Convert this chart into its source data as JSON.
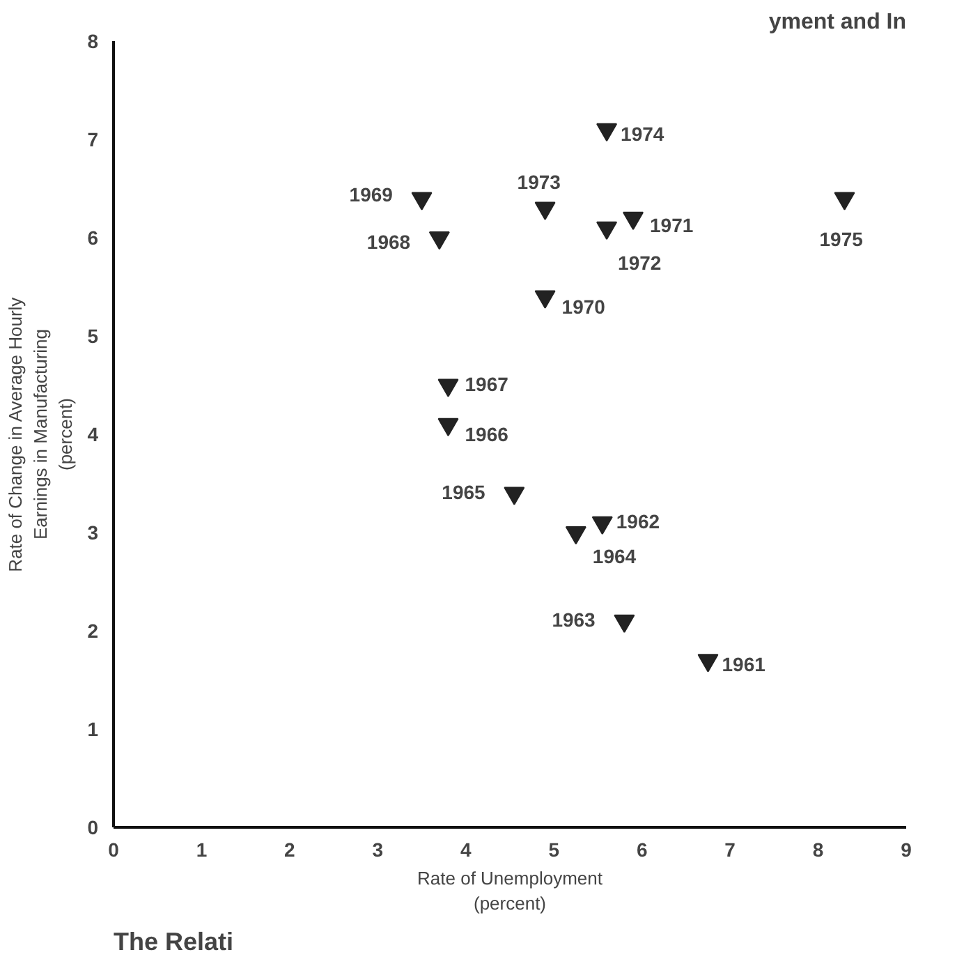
{
  "chart_data": {
    "type": "scatter",
    "title": "yment and In",
    "xlabel": "Rate of Unemployment\n(percent)",
    "ylabel": "Rate of Change in Average Hourly\nEarnings in Manufacturing\n(percent)",
    "x": [
      6.75,
      5.55,
      5.8,
      5.25,
      4.55,
      3.8,
      3.8,
      3.7,
      3.5,
      4.9,
      5.9,
      5.6,
      4.9,
      5.6,
      8.3
    ],
    "values": [
      1.7,
      3.1,
      2.1,
      3.0,
      3.4,
      4.1,
      4.5,
      6.0,
      6.4,
      5.4,
      6.2,
      6.1,
      6.3,
      7.1,
      6.4
    ],
    "color": "#222222",
    "marker": "triangle",
    "xlim": [
      0,
      9
    ],
    "ylim": [
      0,
      8
    ],
    "xticks": [
      0,
      1,
      2,
      3,
      4,
      5,
      6,
      7,
      8,
      9
    ],
    "yticks": [
      0,
      1,
      2,
      3,
      4,
      5,
      6,
      7,
      8
    ],
    "grid": false,
    "annotations": [
      {
        "text": "1961",
        "x": 6.75,
        "y": 1.7
      },
      {
        "text": "1962",
        "x": 5.55,
        "y": 3.1
      },
      {
        "text": "1963",
        "x": 5.8,
        "y": 2.1
      },
      {
        "text": "1964",
        "x": 5.25,
        "y": 3.0
      },
      {
        "text": "1965",
        "x": 4.55,
        "y": 3.4
      },
      {
        "text": "1966",
        "x": 3.8,
        "y": 4.1
      },
      {
        "text": "1967",
        "x": 3.8,
        "y": 4.5
      },
      {
        "text": "1968",
        "x": 3.7,
        "y": 6.0
      },
      {
        "text": "1969",
        "x": 3.5,
        "y": 6.4
      },
      {
        "text": "1970",
        "x": 4.9,
        "y": 5.4
      },
      {
        "text": "1971",
        "x": 5.9,
        "y": 6.2
      },
      {
        "text": "1972",
        "x": 5.6,
        "y": 6.1
      },
      {
        "text": "1973",
        "x": 4.9,
        "y": 6.3
      },
      {
        "text": "1974",
        "x": 5.6,
        "y": 7.1
      },
      {
        "text": "1975",
        "x": 8.3,
        "y": 6.4
      },
      "The Relati"
    ]
  }
}
